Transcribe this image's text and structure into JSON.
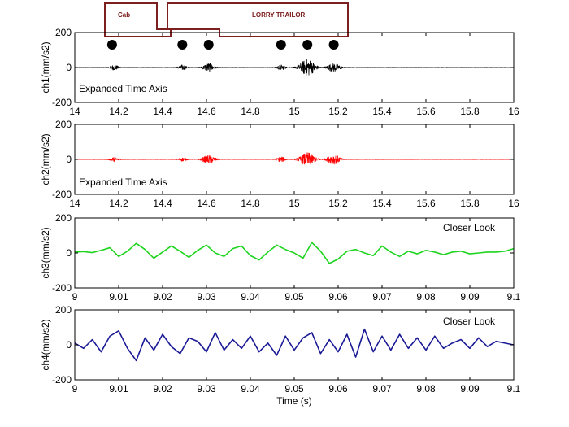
{
  "diagram": {
    "cab_label": "Cab",
    "trailer_label": "LORRY TRAILOR",
    "outline_color": "#7b1f1f",
    "axle_times": [
      14.17,
      14.49,
      14.61,
      14.94,
      15.06,
      15.18
    ]
  },
  "chart_data": [
    {
      "type": "line",
      "id": "ch1",
      "xlabel": "",
      "ylabel": "ch1(mm/s2)",
      "xlim": [
        14,
        16
      ],
      "ylim": [
        -200,
        200
      ],
      "xticks": [
        "14",
        "14.2",
        "14.4",
        "14.6",
        "14.8",
        "15",
        "15.2",
        "15.4",
        "15.6",
        "15.8",
        "16"
      ],
      "yticks": [
        "200",
        "0",
        "-200"
      ],
      "annotation": "Expanded Time Axis",
      "color": "#000000",
      "grid": false,
      "bursts": [
        {
          "t": 14.18,
          "amp": 15,
          "width": 0.02
        },
        {
          "t": 14.49,
          "amp": 15,
          "width": 0.02
        },
        {
          "t": 14.61,
          "amp": 25,
          "width": 0.025
        },
        {
          "t": 14.94,
          "amp": 15,
          "width": 0.02
        },
        {
          "t": 15.06,
          "amp": 50,
          "width": 0.035
        },
        {
          "t": 15.18,
          "amp": 25,
          "width": 0.03
        }
      ]
    },
    {
      "type": "line",
      "id": "ch2",
      "xlabel": "",
      "ylabel": "ch2(mm/s2)",
      "xlim": [
        14,
        16
      ],
      "ylim": [
        -200,
        200
      ],
      "xticks": [
        "14",
        "14.2",
        "14.4",
        "14.6",
        "14.8",
        "15",
        "15.2",
        "15.4",
        "15.6",
        "15.8",
        "16"
      ],
      "yticks": [
        "200",
        "0",
        "-200"
      ],
      "annotation": "Expanded Time Axis",
      "color": "#ff0000",
      "grid": false,
      "bursts": [
        {
          "t": 14.18,
          "amp": 12,
          "width": 0.02
        },
        {
          "t": 14.49,
          "amp": 10,
          "width": 0.02
        },
        {
          "t": 14.61,
          "amp": 25,
          "width": 0.03
        },
        {
          "t": 14.94,
          "amp": 15,
          "width": 0.02
        },
        {
          "t": 15.06,
          "amp": 40,
          "width": 0.035
        },
        {
          "t": 15.18,
          "amp": 28,
          "width": 0.03
        }
      ]
    },
    {
      "type": "line",
      "id": "ch3",
      "xlabel": "",
      "ylabel": "ch3(mm/s2)",
      "xlim": [
        9,
        9.1
      ],
      "ylim": [
        -200,
        200
      ],
      "xticks": [
        "9",
        "9.01",
        "9.02",
        "9.03",
        "9.04",
        "9.05",
        "9.06",
        "9.07",
        "9.08",
        "9.09",
        "9.1"
      ],
      "yticks": [
        "200",
        "0",
        "-200"
      ],
      "annotation": "Closer Look",
      "color": "#1ed41e",
      "grid": false,
      "x": [
        9.0,
        9.002,
        9.004,
        9.006,
        9.008,
        9.01,
        9.012,
        9.014,
        9.016,
        9.018,
        9.02,
        9.022,
        9.024,
        9.026,
        9.028,
        9.03,
        9.032,
        9.034,
        9.036,
        9.038,
        9.04,
        9.042,
        9.044,
        9.046,
        9.048,
        9.05,
        9.052,
        9.054,
        9.056,
        9.058,
        9.06,
        9.062,
        9.064,
        9.066,
        9.068,
        9.07,
        9.072,
        9.074,
        9.076,
        9.078,
        9.08,
        9.082,
        9.084,
        9.086,
        9.088,
        9.09,
        9.092,
        9.094,
        9.096,
        9.098,
        9.1
      ],
      "y": [
        5,
        8,
        2,
        15,
        30,
        -20,
        10,
        55,
        20,
        -30,
        5,
        40,
        10,
        -25,
        15,
        45,
        0,
        -20,
        25,
        40,
        -15,
        -40,
        5,
        45,
        20,
        0,
        -30,
        60,
        10,
        -60,
        -35,
        10,
        20,
        0,
        -15,
        40,
        5,
        -20,
        10,
        -5,
        15,
        5,
        -10,
        5,
        10,
        -5,
        0,
        5,
        5,
        10,
        25
      ]
    },
    {
      "type": "line",
      "id": "ch4",
      "xlabel": "Time (s)",
      "ylabel": "ch4(mm/s2)",
      "xlim": [
        9,
        9.1
      ],
      "ylim": [
        -200,
        200
      ],
      "xticks": [
        "9",
        "9.01",
        "9.02",
        "9.03",
        "9.04",
        "9.05",
        "9.06",
        "9.07",
        "9.08",
        "9.09",
        "9.1"
      ],
      "yticks": [
        "200",
        "0",
        "-200"
      ],
      "annotation": "Closer Look",
      "color": "#1a1a96",
      "grid": false,
      "x": [
        9.0,
        9.002,
        9.004,
        9.006,
        9.008,
        9.01,
        9.012,
        9.014,
        9.016,
        9.018,
        9.02,
        9.022,
        9.024,
        9.026,
        9.028,
        9.03,
        9.032,
        9.034,
        9.036,
        9.038,
        9.04,
        9.042,
        9.044,
        9.046,
        9.048,
        9.05,
        9.052,
        9.054,
        9.056,
        9.058,
        9.06,
        9.062,
        9.064,
        9.066,
        9.068,
        9.07,
        9.072,
        9.074,
        9.076,
        9.078,
        9.08,
        9.082,
        9.084,
        9.086,
        9.088,
        9.09,
        9.092,
        9.094,
        9.096,
        9.098,
        9.1
      ],
      "y": [
        10,
        -20,
        30,
        -40,
        50,
        80,
        -20,
        -90,
        40,
        -30,
        60,
        -10,
        -50,
        40,
        20,
        -40,
        70,
        -30,
        30,
        -20,
        50,
        -40,
        10,
        -60,
        50,
        -30,
        40,
        70,
        -50,
        30,
        -40,
        60,
        -70,
        90,
        -40,
        50,
        -30,
        60,
        -20,
        40,
        -30,
        50,
        -20,
        10,
        30,
        -20,
        40,
        -10,
        20,
        10,
        0
      ]
    }
  ]
}
